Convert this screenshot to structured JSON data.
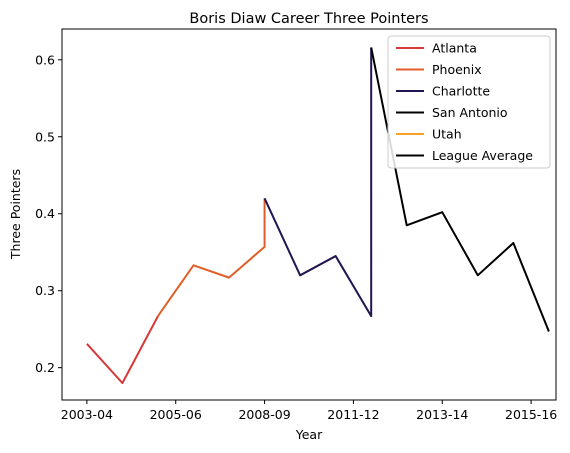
{
  "chart_data": {
    "type": "line",
    "title": "Boris Diaw Career Three Pointers",
    "xlabel": "Year",
    "ylabel": "Three Pointers",
    "x_tick_labels": [
      "2003-04",
      "2005-06",
      "2008-09",
      "2011-12",
      "2013-14",
      "2015-16"
    ],
    "x_tick_positions": [
      0,
      2.5,
      5,
      7.5,
      10,
      12.5
    ],
    "xlim": [
      -0.7,
      13.2
    ],
    "ylim": [
      0.158,
      0.64
    ],
    "y_ticks": [
      0.2,
      0.3,
      0.4,
      0.5,
      0.6
    ],
    "y_tick_labels": [
      "0.2",
      "0.3",
      "0.4",
      "0.5",
      "0.6"
    ],
    "grid": false,
    "legend_position": "top-right",
    "series": [
      {
        "name": "Atlanta",
        "color": "#d73a3a",
        "points": [
          [
            0,
            0.231
          ],
          [
            1,
            0.18
          ],
          [
            2,
            0.267
          ]
        ]
      },
      {
        "name": "Phoenix",
        "color": "#e05f28",
        "points": [
          [
            2,
            0.267
          ],
          [
            3,
            0.333
          ],
          [
            4,
            0.317
          ],
          [
            5,
            0.357
          ],
          [
            5,
            0.42
          ]
        ]
      },
      {
        "name": "Charlotte",
        "color": "#221552",
        "points": [
          [
            5,
            0.42
          ],
          [
            6,
            0.32
          ],
          [
            7,
            0.345
          ],
          [
            8,
            0.267
          ],
          [
            8,
            0.616
          ]
        ]
      },
      {
        "name": "San Antonio",
        "color": "#000000",
        "points": [
          [
            8,
            0.616
          ],
          [
            9,
            0.385
          ],
          [
            10,
            0.402
          ],
          [
            11,
            0.32
          ],
          [
            12,
            0.362
          ],
          [
            13,
            0.247
          ]
        ]
      },
      {
        "name": "Utah",
        "color": "#f5a224",
        "points": []
      },
      {
        "name": "League Average",
        "color": "#000000",
        "points": []
      }
    ]
  }
}
